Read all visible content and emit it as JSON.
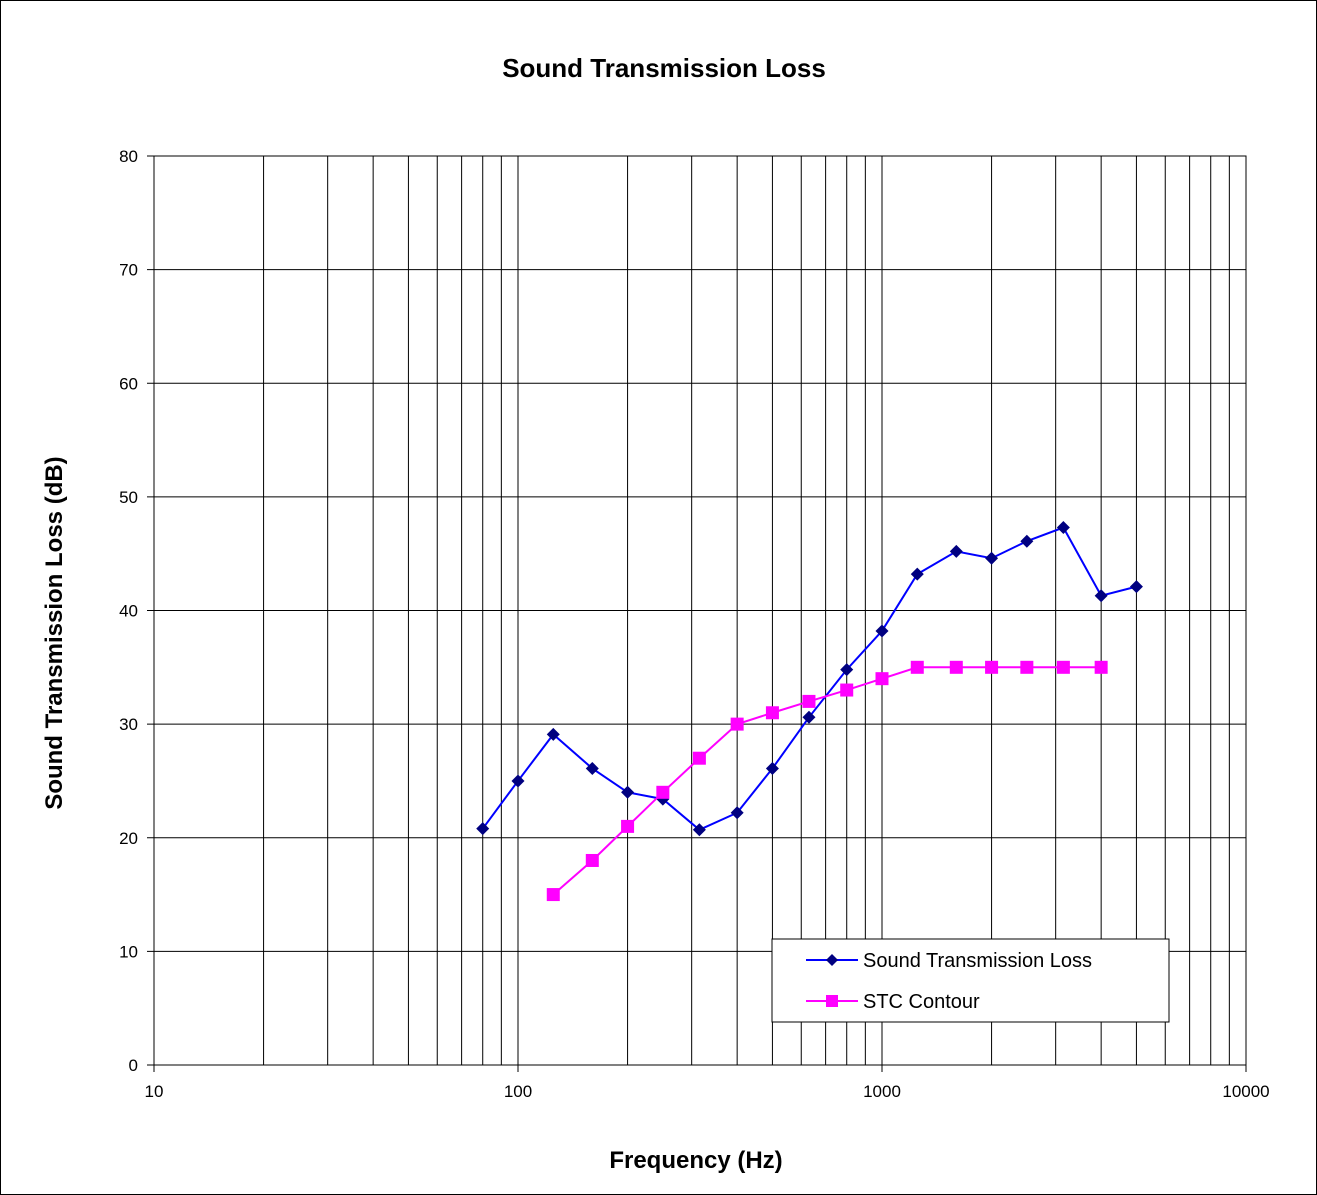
{
  "chart_data": {
    "type": "line",
    "title": "Sound Transmission Loss",
    "xlabel": "Frequency (Hz)",
    "ylabel": "Sound Transmission Loss (dB)",
    "x_scale": "log",
    "xlim": [
      10,
      10000
    ],
    "ylim": [
      0,
      80
    ],
    "x_ticks": [
      "10",
      "100",
      "1000",
      "10000"
    ],
    "y_ticks": [
      "0",
      "10",
      "20",
      "30",
      "40",
      "50",
      "60",
      "70",
      "80"
    ],
    "grid": true,
    "legend_position": "bottom-right",
    "series": [
      {
        "name": "Sound Transmission Loss",
        "color": "#000080",
        "line_color": "#0000ff",
        "marker": "diamond",
        "x": [
          80,
          100,
          125,
          160,
          200,
          250,
          315,
          400,
          500,
          630,
          800,
          1000,
          1250,
          1600,
          2000,
          2500,
          3150,
          4000,
          5000
        ],
        "y": [
          20.8,
          25.0,
          29.1,
          26.1,
          24.0,
          23.4,
          20.7,
          22.2,
          26.1,
          30.6,
          34.8,
          38.2,
          43.2,
          45.2,
          44.6,
          46.1,
          47.3,
          41.3,
          42.1
        ]
      },
      {
        "name": "STC Contour",
        "color": "#ff00ff",
        "line_color": "#ff00ff",
        "marker": "square",
        "x": [
          125,
          160,
          200,
          250,
          315,
          400,
          500,
          630,
          800,
          1000,
          1250,
          1600,
          2000,
          2500,
          3150,
          4000
        ],
        "y": [
          15,
          18,
          21,
          24,
          27,
          30,
          31,
          32,
          33,
          34,
          35,
          35,
          35,
          35,
          35,
          35
        ]
      }
    ]
  }
}
